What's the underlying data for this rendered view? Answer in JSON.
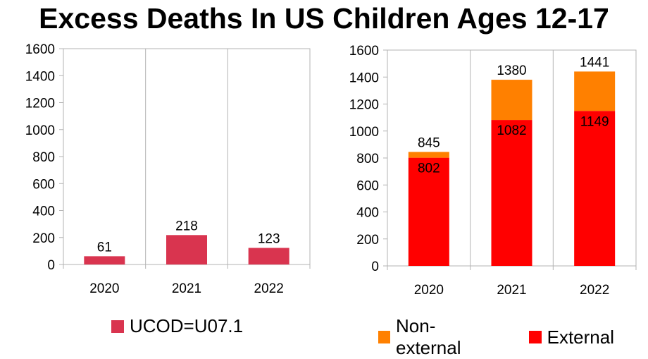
{
  "title": "Excess Deaths In US Children Ages 12-17",
  "chart_data": [
    {
      "type": "bar",
      "categories": [
        "2020",
        "2021",
        "2022"
      ],
      "series": [
        {
          "name": "UCOD=U07.1",
          "values": [
            61,
            218,
            123
          ],
          "color": "#d9344f"
        }
      ],
      "data_labels": [
        "61",
        "218",
        "123"
      ],
      "ylim": [
        0,
        1600
      ],
      "yticks": [
        "0",
        "200",
        "400",
        "600",
        "800",
        "1000",
        "1200",
        "1400",
        "1600"
      ],
      "grid": "vertical category separators",
      "legend": "bottom"
    },
    {
      "type": "bar",
      "stacked": true,
      "categories": [
        "2020",
        "2021",
        "2022"
      ],
      "series": [
        {
          "name": "External",
          "values": [
            802,
            1082,
            1149
          ],
          "color": "#ff0000"
        },
        {
          "name": "Non-external",
          "values": [
            43,
            298,
            292
          ],
          "color": "#ff8000"
        }
      ],
      "inner_labels": [
        "802",
        "1082",
        "1149"
      ],
      "total_labels": [
        "845",
        "1380",
        "1441"
      ],
      "ylim": [
        0,
        1600
      ],
      "yticks": [
        "0",
        "200",
        "400",
        "600",
        "800",
        "1000",
        "1200",
        "1400",
        "1600"
      ],
      "grid": "vertical category separators",
      "legend": "bottom",
      "legend_order": [
        "Non-external",
        "External"
      ]
    }
  ]
}
